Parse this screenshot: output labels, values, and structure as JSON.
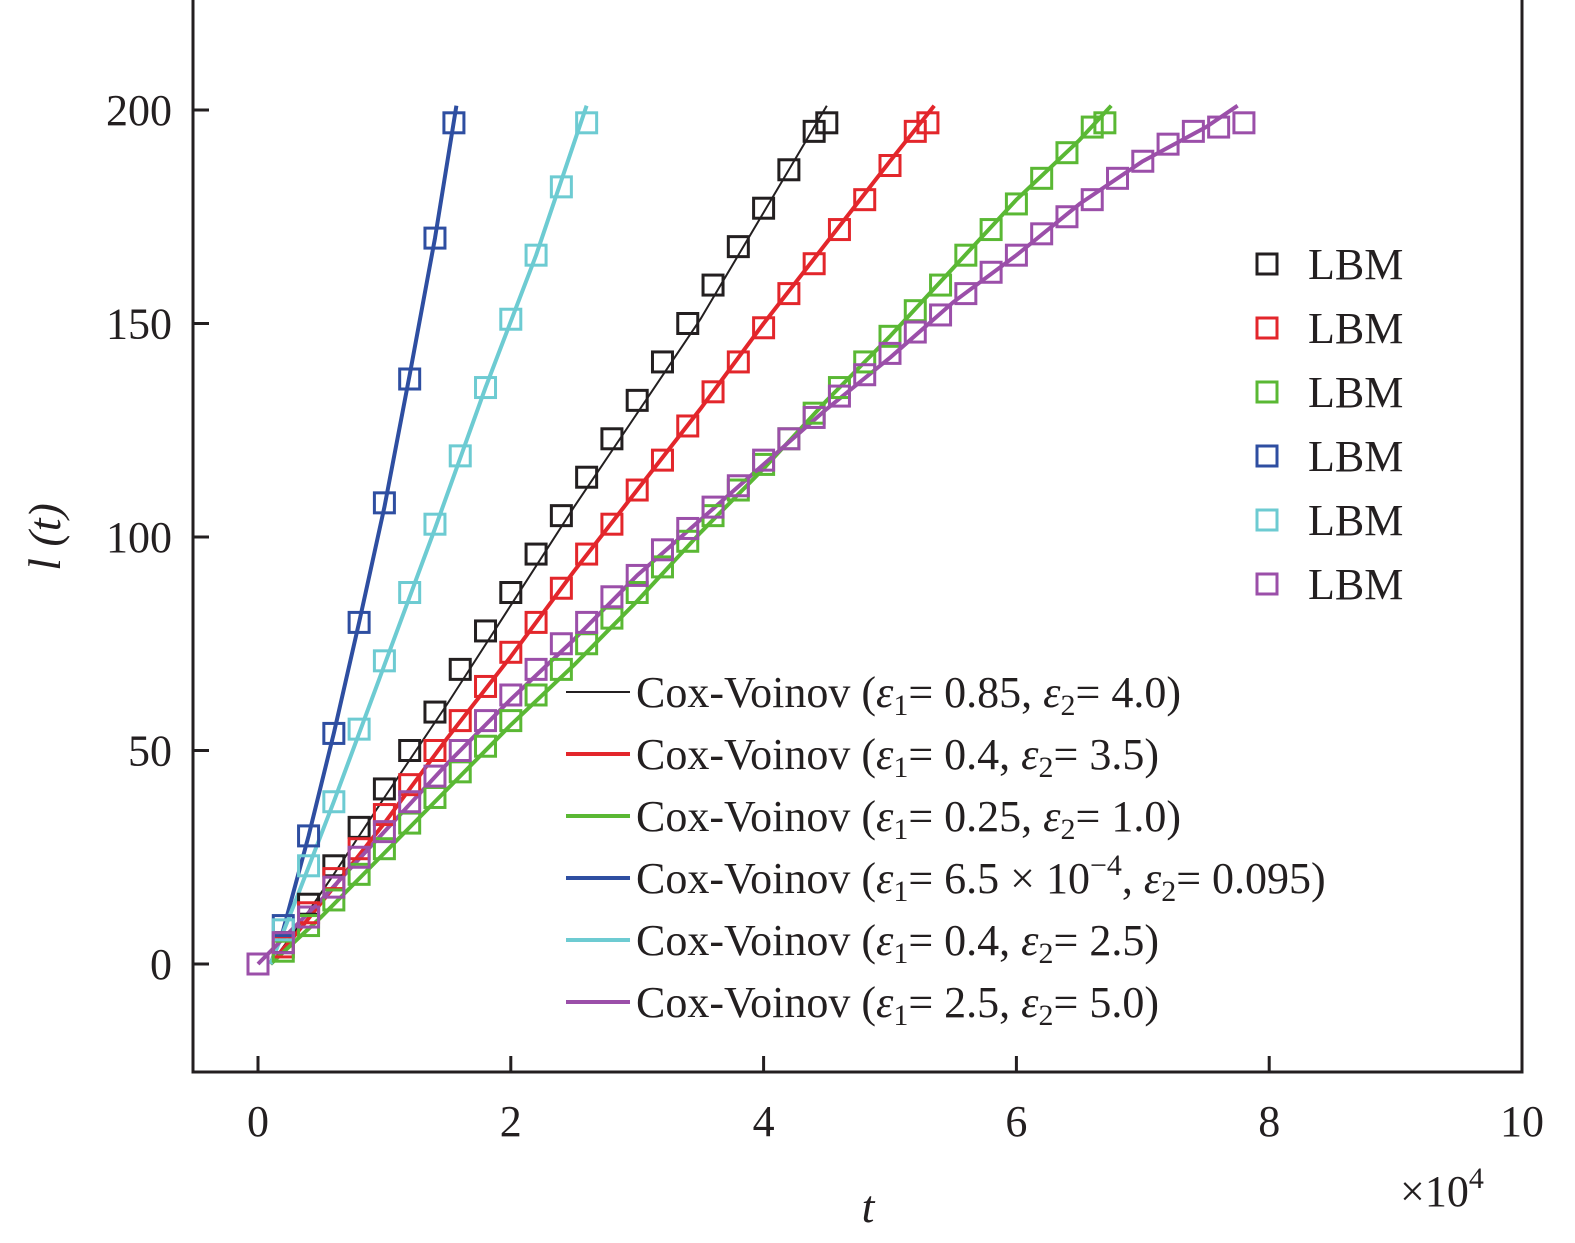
{
  "chart_data": {
    "type": "scatter",
    "title": "",
    "xlabel": "t",
    "ylabel": "l (t)",
    "x_multiplier": "×10",
    "x_multiplier_exp": "4",
    "xlim": [
      -0.5,
      10
    ],
    "ylim": [
      -25,
      225
    ],
    "xticks": [
      0,
      2,
      4,
      6,
      8,
      10
    ],
    "yticks": [
      0,
      50,
      100,
      150,
      200
    ],
    "grid": false,
    "legend_position": "right",
    "series": [
      {
        "name": "LBM",
        "kind": "markers",
        "marker": "square",
        "color": "#231f20",
        "x": [
          0.2,
          0.4,
          0.6,
          0.8,
          1.0,
          1.2,
          1.4,
          1.6,
          1.8,
          2.0,
          2.2,
          2.4,
          2.6,
          2.8,
          3.0,
          3.2,
          3.4,
          3.6,
          3.8,
          4.0,
          4.2,
          4.4,
          4.5
        ],
        "y": [
          5,
          14,
          23,
          32,
          41,
          50,
          59,
          69,
          78,
          87,
          96,
          105,
          114,
          123,
          132,
          141,
          150,
          159,
          168,
          177,
          186,
          195,
          197
        ]
      },
      {
        "name": "LBM",
        "kind": "markers",
        "marker": "square",
        "color": "#e3262b",
        "x": [
          0.2,
          0.4,
          0.6,
          0.8,
          1.0,
          1.2,
          1.4,
          1.6,
          1.8,
          2.0,
          2.2,
          2.4,
          2.6,
          2.8,
          3.0,
          3.2,
          3.4,
          3.6,
          3.8,
          4.0,
          4.2,
          4.4,
          4.6,
          4.8,
          5.0,
          5.2,
          5.3
        ],
        "y": [
          4,
          12,
          20,
          27,
          35,
          42,
          50,
          57,
          65,
          73,
          80,
          88,
          96,
          103,
          111,
          118,
          126,
          134,
          141,
          149,
          157,
          164,
          172,
          179,
          187,
          195,
          197
        ]
      },
      {
        "name": "LBM",
        "kind": "markers",
        "marker": "square",
        "color": "#5ab834",
        "x": [
          0.2,
          0.4,
          0.6,
          0.8,
          1.0,
          1.2,
          1.4,
          1.6,
          1.8,
          2.0,
          2.2,
          2.4,
          2.6,
          2.8,
          3.0,
          3.2,
          3.4,
          3.6,
          3.8,
          4.0,
          4.2,
          4.4,
          4.6,
          4.8,
          5.0,
          5.2,
          5.4,
          5.6,
          5.8,
          6.0,
          6.2,
          6.4,
          6.6,
          6.7
        ],
        "y": [
          3,
          9,
          15,
          21,
          27,
          33,
          39,
          45,
          51,
          57,
          63,
          69,
          75,
          81,
          87,
          93,
          99,
          105,
          111,
          117,
          123,
          129,
          135,
          141,
          147,
          153,
          159,
          166,
          172,
          178,
          184,
          190,
          196,
          197
        ]
      },
      {
        "name": "LBM",
        "kind": "markers",
        "marker": "square",
        "color": "#2e4ea1",
        "x": [
          0.2,
          0.4,
          0.6,
          0.8,
          1.0,
          1.2,
          1.4,
          1.55
        ],
        "y": [
          9,
          30,
          54,
          80,
          108,
          137,
          170,
          197
        ]
      },
      {
        "name": "LBM",
        "kind": "markers",
        "marker": "square",
        "color": "#6dcbd2",
        "x": [
          0.2,
          0.4,
          0.6,
          0.8,
          1.0,
          1.2,
          1.4,
          1.6,
          1.8,
          2.0,
          2.2,
          2.4,
          2.6
        ],
        "y": [
          8,
          23,
          38,
          55,
          71,
          87,
          103,
          119,
          135,
          151,
          166,
          182,
          197
        ]
      },
      {
        "name": "LBM",
        "kind": "markers",
        "marker": "square",
        "color": "#9b4fa9",
        "x": [
          0,
          0.2,
          0.4,
          0.6,
          0.8,
          1.0,
          1.2,
          1.4,
          1.6,
          1.8,
          2.0,
          2.2,
          2.4,
          2.6,
          2.8,
          3.0,
          3.2,
          3.4,
          3.6,
          3.8,
          4.0,
          4.2,
          4.4,
          4.6,
          4.8,
          5.0,
          5.2,
          5.4,
          5.6,
          5.8,
          6.0,
          6.2,
          6.4,
          6.6,
          6.8,
          7.0,
          7.2,
          7.4,
          7.6,
          7.8
        ],
        "y": [
          0,
          5,
          11,
          18,
          25,
          31,
          38,
          44,
          50,
          57,
          63,
          69,
          75,
          80,
          86,
          91,
          97,
          102,
          107,
          112,
          118,
          123,
          128,
          133,
          138,
          143,
          148,
          152,
          157,
          162,
          166,
          171,
          175,
          179,
          184,
          188,
          192,
          195,
          196,
          197
        ]
      },
      {
        "name": "Cox-Voinov (",
        "eps1": "= 0.85, ",
        "eps2": "= 4.0)",
        "kind": "line",
        "color": "#231f20",
        "width": 2,
        "x": [
          0.1,
          0.3,
          0.6,
          1.0,
          1.5,
          2.0,
          2.5,
          3.0,
          3.5,
          4.0,
          4.5
        ],
        "y": [
          0,
          8,
          21,
          39,
          61,
          84,
          107,
          129,
          151,
          176,
          201
        ]
      },
      {
        "name": "Cox-Voinov (",
        "eps1": "= 0.4, ",
        "eps2": "= 3.5)",
        "kind": "line",
        "color": "#e3262b",
        "width": 4,
        "x": [
          0.1,
          0.3,
          0.6,
          1.0,
          1.5,
          2.0,
          2.5,
          3.0,
          3.5,
          4.0,
          4.5,
          5.0,
          5.35
        ],
        "y": [
          0,
          7,
          18,
          33,
          53,
          72,
          92,
          111,
          130,
          150,
          169,
          188,
          201
        ]
      },
      {
        "name": "Cox-Voinov (",
        "eps1": "= 0.25, ",
        "eps2": "= 1.0)",
        "kind": "line",
        "color": "#5ab834",
        "width": 4,
        "x": [
          0.1,
          0.5,
          1.0,
          1.5,
          2.0,
          2.5,
          3.0,
          3.5,
          4.0,
          4.5,
          5.0,
          5.5,
          6.0,
          6.5,
          6.75
        ],
        "y": [
          0,
          11,
          26,
          41,
          56,
          70,
          85,
          101,
          116,
          132,
          147,
          163,
          179,
          193,
          201
        ]
      },
      {
        "name": "Cox-Voinov (",
        "eps1": "= 6.5 × 10",
        "eps1_exp": "−4",
        "eps2": "= 0.095)",
        "kind": "line",
        "color": "#2e4ea1",
        "width": 4,
        "x": [
          0.1,
          0.2,
          0.4,
          0.6,
          0.8,
          1.0,
          1.2,
          1.4,
          1.57
        ],
        "y": [
          0,
          8,
          30,
          54,
          80,
          107,
          138,
          170,
          201
        ]
      },
      {
        "name": "Cox-Voinov (",
        "eps1": "= 0.4, ",
        "eps2": "= 2.5)",
        "kind": "line",
        "color": "#6dcbd2",
        "width": 4,
        "x": [
          0.1,
          0.3,
          0.6,
          1.0,
          1.4,
          1.8,
          2.2,
          2.6
        ],
        "y": [
          0,
          15,
          38,
          70,
          102,
          135,
          166,
          201
        ]
      },
      {
        "name": "Cox-Voinov (",
        "eps1": "= 2.5, ",
        "eps2": "= 5.0)",
        "kind": "line",
        "color": "#9b4fa9",
        "width": 4,
        "x": [
          0,
          0.5,
          1.0,
          1.5,
          2.0,
          2.5,
          3.0,
          3.5,
          4.0,
          4.5,
          5.0,
          5.5,
          6.0,
          6.5,
          7.0,
          7.5,
          7.75
        ],
        "y": [
          0,
          15,
          31,
          47,
          62,
          76,
          91,
          104,
          117,
          130,
          142,
          155,
          166,
          178,
          188,
          196,
          201
        ]
      }
    ]
  }
}
